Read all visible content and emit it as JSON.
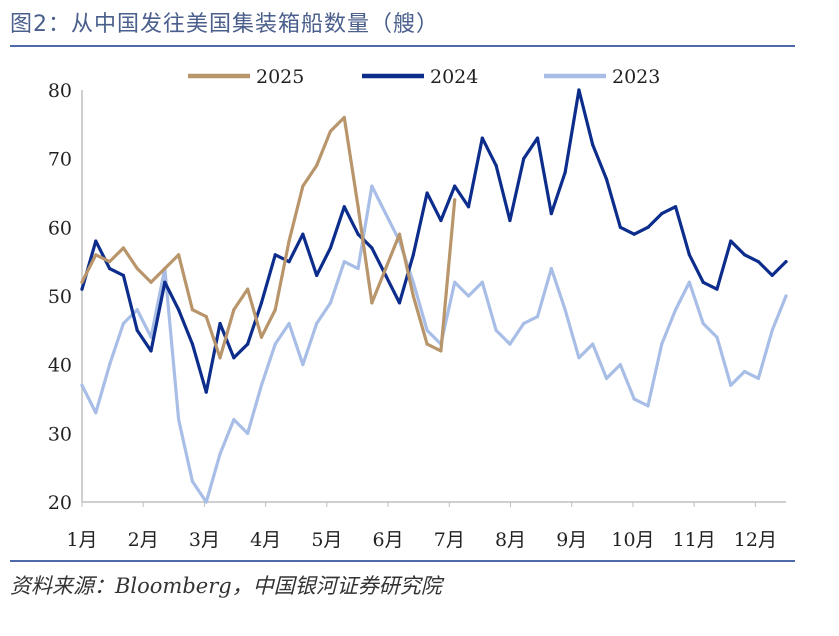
{
  "title": "图2：从中国发往美国集装箱船数量（艘）",
  "source": "资料来源：Bloomberg，中国银河证券研究院",
  "chart_data": {
    "type": "line",
    "title": "图2：从中国发往美国集装箱船数量（艘）",
    "xlabel": "",
    "ylabel": "",
    "ylim": [
      20,
      80
    ],
    "yticks": [
      20,
      30,
      40,
      50,
      60,
      70,
      80
    ],
    "x_month_labels": [
      "1月",
      "2月",
      "3月",
      "4月",
      "5月",
      "6月",
      "7月",
      "8月",
      "9月",
      "10月",
      "11月",
      "12月"
    ],
    "x_unit": "week",
    "legend_position": "top",
    "grid": false,
    "series": [
      {
        "name": "2025",
        "color": "#b8956a",
        "x": [
          1,
          2,
          3,
          4,
          5,
          6,
          7,
          8,
          9,
          10,
          11,
          12,
          13,
          14,
          15,
          16,
          17,
          18,
          19,
          20,
          21,
          22,
          23,
          24,
          25,
          26,
          27,
          28
        ],
        "values": [
          52,
          56,
          55,
          57,
          54,
          52,
          54,
          56,
          48,
          47,
          41,
          48,
          51,
          44,
          48,
          58,
          66,
          69,
          74,
          76,
          63,
          49,
          54,
          59,
          50,
          43,
          42,
          64
        ]
      },
      {
        "name": "2024",
        "color": "#0d2d8c",
        "x": [
          1,
          2,
          3,
          4,
          5,
          6,
          7,
          8,
          9,
          10,
          11,
          12,
          13,
          14,
          15,
          16,
          17,
          18,
          19,
          20,
          21,
          22,
          23,
          24,
          25,
          26,
          27,
          28,
          29,
          30,
          31,
          32,
          33,
          34,
          35,
          36,
          37,
          38,
          39,
          40,
          41,
          42,
          43,
          44,
          45,
          46,
          47,
          48,
          49,
          50,
          51,
          52
        ],
        "values": [
          51,
          58,
          54,
          53,
          45,
          42,
          52,
          48,
          43,
          36,
          46,
          41,
          43,
          49,
          56,
          55,
          59,
          53,
          57,
          63,
          59,
          57,
          53,
          49,
          56,
          65,
          61,
          66,
          63,
          73,
          69,
          61,
          70,
          73,
          62,
          68,
          80,
          72,
          67,
          60,
          59,
          60,
          62,
          63,
          56,
          52,
          51,
          58,
          56,
          55,
          53,
          55
        ]
      },
      {
        "name": "2023",
        "color": "#a8bee6",
        "x": [
          1,
          2,
          3,
          4,
          5,
          6,
          7,
          8,
          9,
          10,
          11,
          12,
          13,
          14,
          15,
          16,
          17,
          18,
          19,
          20,
          21,
          22,
          23,
          24,
          25,
          26,
          27,
          28,
          29,
          30,
          31,
          32,
          33,
          34,
          35,
          36,
          37,
          38,
          39,
          40,
          41,
          42,
          43,
          44,
          45,
          46,
          47,
          48,
          49,
          50,
          51,
          52
        ],
        "values": [
          37,
          33,
          40,
          46,
          48,
          44,
          54,
          32,
          23,
          20,
          27,
          32,
          30,
          37,
          43,
          46,
          40,
          46,
          49,
          55,
          54,
          66,
          62,
          58,
          52,
          45,
          43,
          52,
          50,
          52,
          45,
          43,
          46,
          47,
          54,
          48,
          41,
          43,
          38,
          40,
          35,
          34,
          43,
          48,
          52,
          46,
          44,
          37,
          39,
          38,
          45,
          50
        ]
      }
    ]
  }
}
